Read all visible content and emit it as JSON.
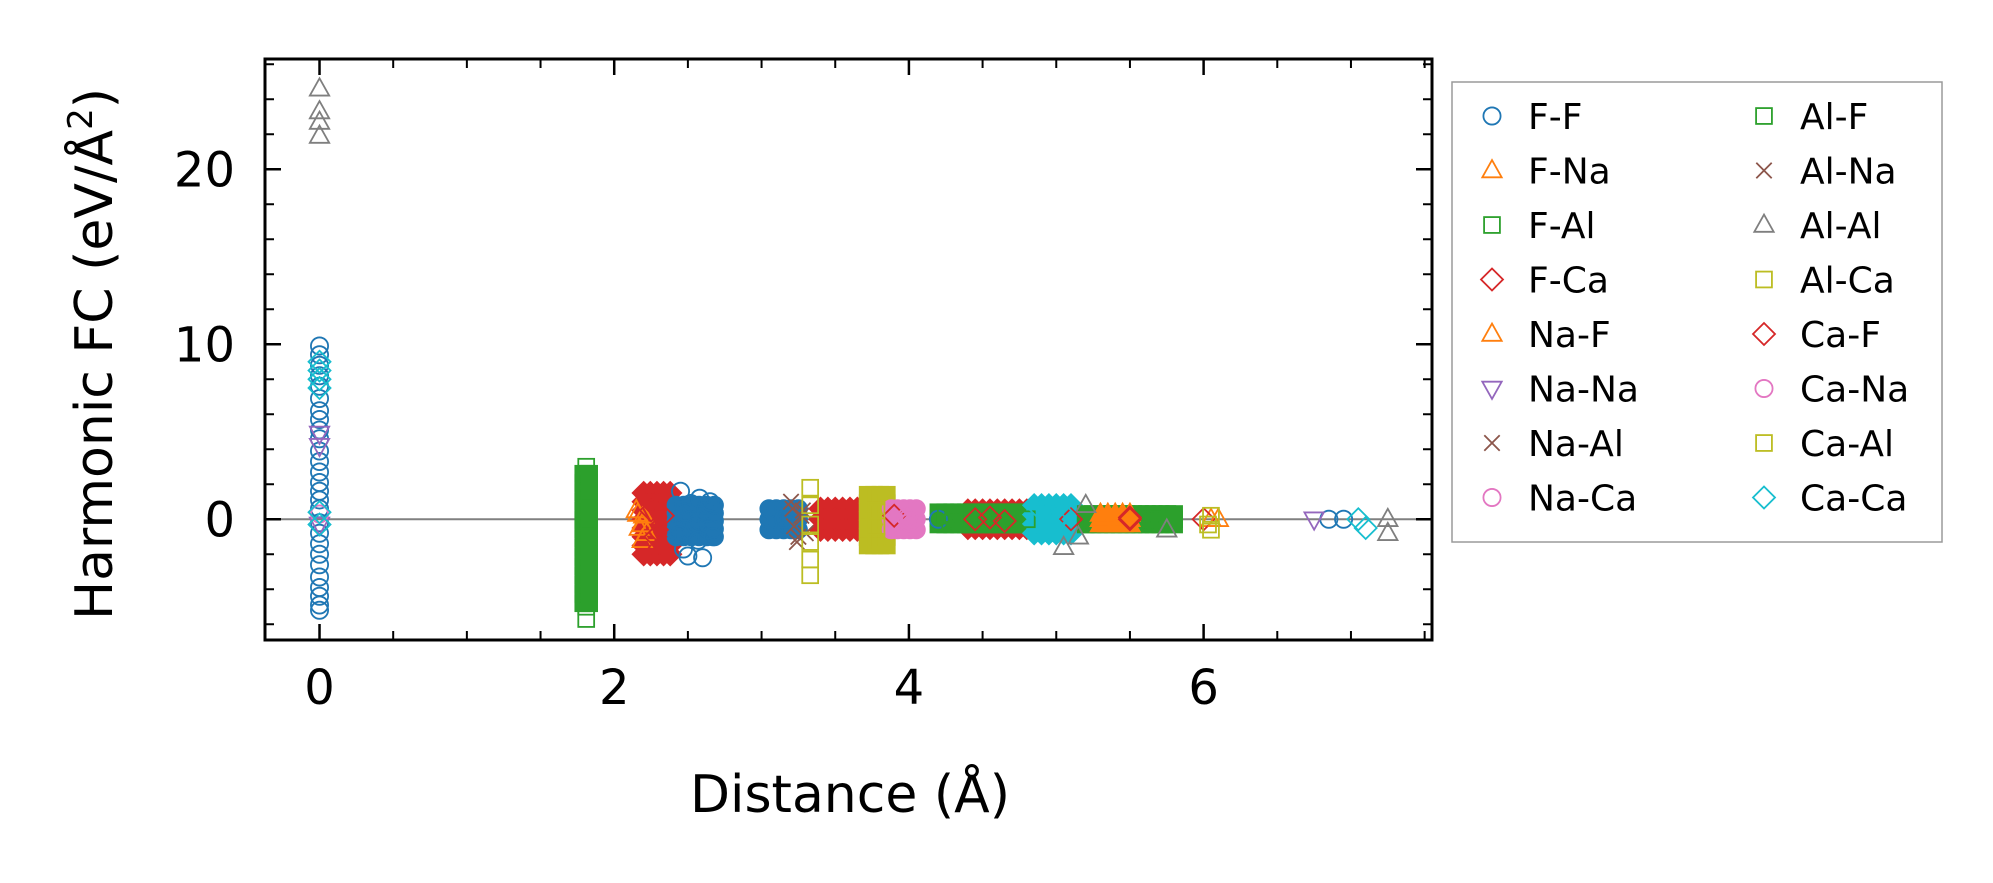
{
  "chart_data": {
    "type": "scatter",
    "title": "",
    "xlabel": "Distance (Å)",
    "ylabel_main": "Harmonic FC (eV/Å",
    "ylabel_sup": "2",
    "ylabel_close": ")",
    "xlim": [
      -0.37,
      7.55
    ],
    "ylim": [
      -6.9,
      26.3
    ],
    "xticks": [
      0,
      2,
      4,
      6
    ],
    "xtick_labels": [
      "0",
      "2",
      "4",
      "6"
    ],
    "yticks": [
      0,
      10,
      20
    ],
    "ytick_labels": [
      "0",
      "10",
      "20"
    ],
    "x_minor_step": 0.5,
    "y_minor_step": 2,
    "zero_line": 0,
    "grid": false,
    "legend_position": "outside-right",
    "legend_columns": 2,
    "series": [
      {
        "name": "F-F",
        "marker": "circle",
        "color": "#1f77b4",
        "filled": false,
        "points": [
          [
            0,
            9.9
          ],
          [
            0,
            9.4
          ],
          [
            0,
            8.8
          ],
          [
            0,
            8.2
          ],
          [
            0,
            7.6
          ],
          [
            0,
            6.9
          ],
          [
            0,
            6.2
          ],
          [
            0,
            5.7
          ],
          [
            0,
            5.1
          ],
          [
            0,
            4.6
          ],
          [
            0,
            3.9
          ],
          [
            0,
            3.3
          ],
          [
            0,
            2.7
          ],
          [
            0,
            2.1
          ],
          [
            0,
            1.6
          ],
          [
            0,
            1.1
          ],
          [
            0,
            0.6
          ],
          [
            0,
            -0.2
          ],
          [
            0,
            -0.8
          ],
          [
            0,
            -1.4
          ],
          [
            0,
            -2.0
          ],
          [
            0,
            -2.6
          ],
          [
            0,
            -3.3
          ],
          [
            0,
            -3.9
          ],
          [
            0,
            -4.4
          ],
          [
            0,
            -4.9
          ],
          [
            0,
            -5.2
          ],
          [
            2.45,
            1.6
          ],
          [
            2.48,
            0.4
          ],
          [
            2.44,
            -0.9
          ],
          [
            2.47,
            -1.7
          ],
          [
            2.5,
            -2.1
          ],
          [
            2.52,
            0.9
          ],
          [
            2.55,
            -0.3
          ],
          [
            2.57,
            -1.2
          ],
          [
            2.58,
            1.2
          ],
          [
            2.6,
            -2.2
          ],
          [
            2.62,
            0.5
          ],
          [
            2.64,
            -0.6
          ],
          [
            2.65,
            1.0
          ],
          [
            2.67,
            -1.0
          ],
          [
            3.15,
            0
          ],
          [
            3.17,
            -0.3
          ],
          [
            3.2,
            0.2
          ],
          [
            4.2,
            0
          ],
          [
            6.85,
            0
          ],
          [
            6.95,
            0
          ]
        ]
      },
      {
        "name": "F-Na",
        "marker": "triangle-up",
        "color": "#ff7f0e",
        "filled": false,
        "points": [
          [
            2.15,
            0.5
          ],
          [
            2.17,
            -0.5
          ],
          [
            2.19,
            -1.2
          ],
          [
            2.2,
            0.2
          ],
          [
            2.22,
            -0.8
          ],
          [
            5.45,
            0
          ],
          [
            6.05,
            0
          ]
        ]
      },
      {
        "name": "F-Al",
        "marker": "square",
        "color": "#2ca02c",
        "filled": false,
        "points": [
          [
            1.81,
            3.0
          ],
          [
            1.81,
            2.2
          ],
          [
            1.81,
            1.4
          ],
          [
            1.81,
            0.6
          ],
          [
            1.81,
            -0.2
          ],
          [
            1.81,
            -1.0
          ],
          [
            1.81,
            -1.8
          ],
          [
            1.81,
            -2.6
          ],
          [
            1.81,
            -3.4
          ],
          [
            1.81,
            -4.2
          ],
          [
            1.81,
            -5.0
          ],
          [
            1.81,
            -5.7
          ],
          [
            4.3,
            0.2
          ],
          [
            4.6,
            0.1
          ],
          [
            5.7,
            0
          ]
        ]
      },
      {
        "name": "F-Ca",
        "marker": "diamond",
        "color": "#d62728",
        "filled": false,
        "points": [
          [
            2.27,
            0.8
          ],
          [
            2.29,
            -0.6
          ],
          [
            2.31,
            -1.6
          ],
          [
            2.33,
            0.2
          ],
          [
            3.5,
            0
          ],
          [
            3.9,
            0.2
          ],
          [
            5.5,
            0
          ],
          [
            6.0,
            0
          ]
        ]
      },
      {
        "name": "Na-F",
        "marker": "triangle-up",
        "color": "#ff7f0e",
        "filled": false,
        "points": [
          [
            2.16,
            0.3
          ],
          [
            2.19,
            -0.3
          ],
          [
            5.3,
            0
          ],
          [
            6.1,
            0
          ]
        ]
      },
      {
        "name": "Na-Na",
        "marker": "triangle-down",
        "color": "#9467bd",
        "filled": false,
        "points": [
          [
            0,
            4.9
          ],
          [
            0,
            4.2
          ],
          [
            0,
            -0.3
          ],
          [
            6.75,
            0
          ]
        ]
      },
      {
        "name": "Na-Al",
        "marker": "x",
        "color": "#8c564b",
        "filled": false,
        "points": [
          [
            3.2,
            1.0
          ],
          [
            3.22,
            -0.4
          ],
          [
            3.24,
            -1.3
          ],
          [
            3.28,
            0.5
          ],
          [
            3.3,
            -0.8
          ]
        ]
      },
      {
        "name": "Na-Ca",
        "marker": "circle",
        "color": "#e377c2",
        "filled": false,
        "points": [
          [
            3.99,
            0
          ],
          [
            4.0,
            -0.2
          ],
          [
            0,
            0.3
          ]
        ]
      },
      {
        "name": "Al-F",
        "marker": "square",
        "color": "#2ca02c",
        "filled": false,
        "points": [
          [
            4.25,
            0.3
          ],
          [
            4.28,
            -0.2
          ],
          [
            4.8,
            0
          ],
          [
            5.65,
            0
          ]
        ]
      },
      {
        "name": "Al-Na",
        "marker": "x",
        "color": "#8c564b",
        "filled": false,
        "points": [
          [
            3.21,
            0.6
          ],
          [
            3.25,
            -1.0
          ],
          [
            3.27,
            0.2
          ]
        ]
      },
      {
        "name": "Al-Al",
        "marker": "triangle-up",
        "color": "#7f7f7f",
        "filled": false,
        "points": [
          [
            0,
            24.6
          ],
          [
            0,
            23.3
          ],
          [
            0,
            22.7
          ],
          [
            0,
            21.9
          ],
          [
            5.05,
            -1.6
          ],
          [
            5.15,
            -1.0
          ],
          [
            5.2,
            0.8
          ],
          [
            5.75,
            -0.6
          ],
          [
            7.25,
            -0.8
          ],
          [
            7.25,
            0
          ]
        ]
      },
      {
        "name": "Al-Ca",
        "marker": "square",
        "color": "#bcbd22",
        "filled": false,
        "points": [
          [
            3.33,
            1.8
          ],
          [
            3.33,
            0.8
          ],
          [
            3.33,
            -0.3
          ],
          [
            3.33,
            -1.3
          ],
          [
            3.33,
            -2.3
          ],
          [
            3.33,
            -3.2
          ],
          [
            6.05,
            0.2
          ],
          [
            6.05,
            -0.6
          ]
        ]
      },
      {
        "name": "Ca-F",
        "marker": "diamond",
        "color": "#d62728",
        "filled": false,
        "points": [
          [
            2.25,
            0.5
          ],
          [
            2.28,
            -1.0
          ],
          [
            4.45,
            0
          ],
          [
            4.55,
            0.1
          ],
          [
            4.65,
            -0.1
          ],
          [
            5.1,
            0
          ],
          [
            5.5,
            0.1
          ]
        ]
      },
      {
        "name": "Ca-Na",
        "marker": "circle",
        "color": "#e377c2",
        "filled": false,
        "points": [
          [
            3.98,
            0.1
          ],
          [
            4.01,
            -0.1
          ]
        ]
      },
      {
        "name": "Ca-Al",
        "marker": "square",
        "color": "#bcbd22",
        "filled": false,
        "points": [
          [
            3.78,
            1.3
          ],
          [
            3.78,
            0.5
          ],
          [
            3.78,
            -0.4
          ],
          [
            3.78,
            -1.3
          ],
          [
            6.03,
            -0.3
          ]
        ]
      },
      {
        "name": "Ca-Ca",
        "marker": "diamond",
        "color": "#17becf",
        "filled": false,
        "points": [
          [
            0,
            9.0
          ],
          [
            0,
            8.5
          ],
          [
            0,
            8.0
          ],
          [
            0,
            7.5
          ],
          [
            0,
            0.4
          ],
          [
            0,
            -0.3
          ],
          [
            4.9,
            0.5
          ],
          [
            4.95,
            -0.4
          ],
          [
            5.0,
            0
          ],
          [
            5.05,
            0.3
          ],
          [
            7.05,
            0
          ],
          [
            7.1,
            -0.5
          ]
        ]
      }
    ],
    "dense_bands": [
      {
        "color": "#1f77b4",
        "marker": "circle-filled",
        "x": [
          3.05,
          3.25
        ],
        "y": [
          -0.6,
          0.6
        ]
      },
      {
        "color": "#d62728",
        "marker": "diamond-filled",
        "x": [
          2.2,
          2.38
        ],
        "y": [
          -2.0,
          1.5
        ]
      },
      {
        "color": "#1f77b4",
        "marker": "circle-filled",
        "x": [
          2.42,
          2.68
        ],
        "y": [
          -1.0,
          0.8
        ]
      },
      {
        "color": "#2ca02c",
        "marker": "square-filled",
        "x": [
          1.79,
          1.83
        ],
        "y": [
          -4.8,
          2.6
        ]
      },
      {
        "color": "#d62728",
        "marker": "diamond-filled",
        "x": [
          3.4,
          3.65
        ],
        "y": [
          -0.6,
          0.6
        ]
      },
      {
        "color": "#bcbd22",
        "marker": "square-filled",
        "x": [
          3.72,
          3.85
        ],
        "y": [
          -1.5,
          1.4
        ]
      },
      {
        "color": "#e377c2",
        "marker": "circle-filled",
        "x": [
          3.88,
          4.05
        ],
        "y": [
          -0.6,
          0.6
        ]
      },
      {
        "color": "#d62728",
        "marker": "diamond-filled",
        "x": [
          4.4,
          4.8
        ],
        "y": [
          -0.5,
          0.5
        ]
      },
      {
        "color": "#2ca02c",
        "marker": "square-filled",
        "x": [
          4.2,
          4.9
        ],
        "y": [
          -0.3,
          0.4
        ]
      },
      {
        "color": "#17becf",
        "marker": "diamond-filled",
        "x": [
          4.85,
          5.1
        ],
        "y": [
          -0.8,
          0.8
        ]
      },
      {
        "color": "#2ca02c",
        "marker": "square-filled",
        "x": [
          5.2,
          5.8
        ],
        "y": [
          -0.3,
          0.3
        ]
      },
      {
        "color": "#ff7f0e",
        "marker": "triangle-filled",
        "x": [
          5.3,
          5.5
        ],
        "y": [
          -0.3,
          0.3
        ]
      }
    ]
  }
}
